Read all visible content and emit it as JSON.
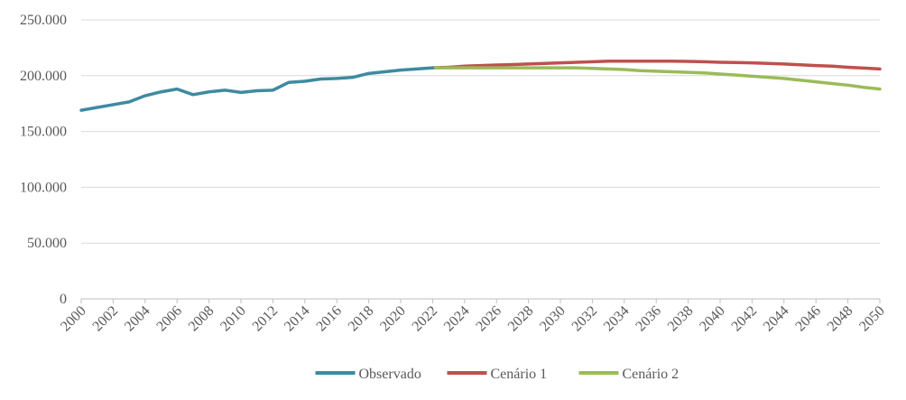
{
  "chart_data": {
    "type": "line",
    "title": "",
    "xlabel": "",
    "ylabel": "",
    "ylim": [
      0,
      250000
    ],
    "y_ticks": [
      0,
      50000,
      100000,
      150000,
      200000,
      250000
    ],
    "y_tick_labels": [
      "0",
      "50.000",
      "100.000",
      "150.000",
      "200.000",
      "250.000"
    ],
    "x_ticks": [
      2000,
      2002,
      2004,
      2006,
      2008,
      2010,
      2012,
      2014,
      2016,
      2018,
      2020,
      2022,
      2024,
      2026,
      2028,
      2030,
      2032,
      2034,
      2036,
      2038,
      2040,
      2042,
      2044,
      2046,
      2048,
      2050
    ],
    "x_tick_labels": [
      "2000",
      "2002",
      "2004",
      "2006",
      "2008",
      "2010",
      "2012",
      "2014",
      "2016",
      "2018",
      "2020",
      "2022",
      "2024",
      "2026",
      "2028",
      "2030",
      "2032",
      "2034",
      "2036",
      "2038",
      "2040",
      "2042",
      "2044",
      "2046",
      "2048",
      "2050"
    ],
    "xlim": [
      2000,
      2050
    ],
    "grid": "horizontal",
    "legend": "bottom",
    "series": [
      {
        "name": "Observado",
        "color": "#3F8AA0",
        "x": [
          2000,
          2001,
          2002,
          2003,
          2004,
          2005,
          2006,
          2007,
          2008,
          2009,
          2010,
          2011,
          2012,
          2013,
          2014,
          2015,
          2016,
          2017,
          2018,
          2019,
          2020,
          2021,
          2022
        ],
        "values": [
          169000,
          171500,
          174000,
          176500,
          182000,
          185500,
          188000,
          183000,
          185500,
          187000,
          185000,
          186500,
          187000,
          194000,
          195000,
          197000,
          197500,
          198500,
          202000,
          203500,
          205000,
          206000,
          207000
        ]
      },
      {
        "name": "Cenário 1",
        "color": "#C0504D",
        "x": [
          2022,
          2023,
          2024,
          2025,
          2026,
          2027,
          2028,
          2029,
          2030,
          2031,
          2032,
          2033,
          2034,
          2035,
          2036,
          2037,
          2038,
          2039,
          2040,
          2041,
          2042,
          2043,
          2044,
          2045,
          2046,
          2047,
          2048,
          2049,
          2050
        ],
        "values": [
          207000,
          207500,
          208500,
          209000,
          209500,
          210000,
          210500,
          211000,
          211500,
          212000,
          212500,
          213000,
          213000,
          213000,
          213000,
          213000,
          212800,
          212500,
          212000,
          211800,
          211500,
          211000,
          210500,
          209800,
          209000,
          208500,
          207500,
          206800,
          206000
        ]
      },
      {
        "name": "Cenário 2",
        "color": "#9BBB59",
        "x": [
          2022,
          2023,
          2024,
          2025,
          2026,
          2027,
          2028,
          2029,
          2030,
          2031,
          2032,
          2033,
          2034,
          2035,
          2036,
          2037,
          2038,
          2039,
          2040,
          2041,
          2042,
          2043,
          2044,
          2045,
          2046,
          2047,
          2048,
          2049,
          2050
        ],
        "values": [
          207000,
          207000,
          207000,
          207000,
          207000,
          207000,
          207000,
          207000,
          207000,
          207000,
          206500,
          206000,
          205500,
          204500,
          204000,
          203500,
          203000,
          202500,
          201500,
          200500,
          199500,
          198500,
          197500,
          196000,
          194500,
          193000,
          191500,
          189500,
          188000
        ]
      }
    ]
  }
}
